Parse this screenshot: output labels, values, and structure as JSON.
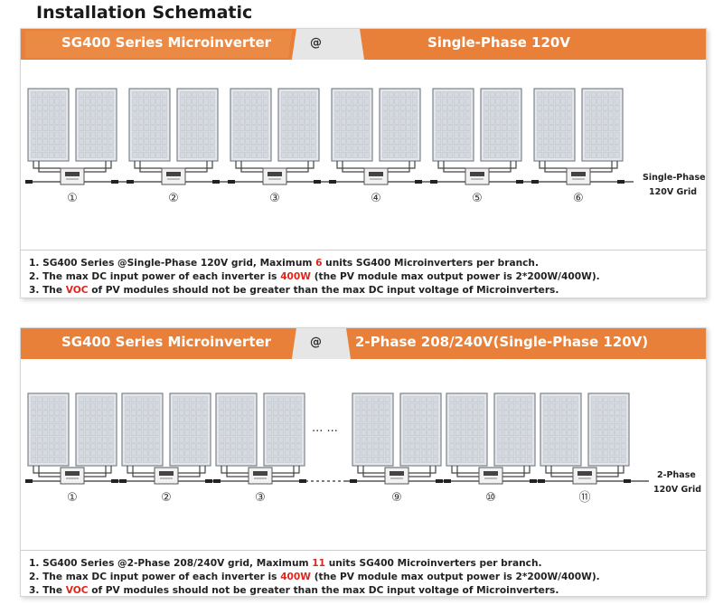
{
  "title": "Installation Schematic",
  "colors": {
    "banner": "#e9803a",
    "banner_dark": "#d96a22",
    "red": "#e0241b",
    "panel_blue": "#dfe3e8"
  },
  "section1": {
    "banner_left": "SG400 Series Microinverter",
    "banner_at": "@",
    "banner_right": "Single-Phase 120V",
    "units": [
      "①",
      "②",
      "③",
      "④",
      "⑤",
      "⑥"
    ],
    "grid_label_1": "Single-Phase",
    "grid_label_2": "120V Grid",
    "notes": [
      {
        "pre": "1. SG400 Series @Single-Phase 120V grid, Maximum ",
        "red": "6",
        "post": " units SG400 Microinverters  per branch."
      },
      {
        "pre": "2. The max DC input power of each inverter is ",
        "red": "400W",
        "post": " (the PV module max output power is 2*200W/400W)."
      },
      {
        "pre": "3. The ",
        "red": "VOC",
        "post": " of PV modules should not be greater than the max DC input voltage of Microinverters."
      }
    ]
  },
  "section2": {
    "banner_left": "SG400 Series Microinverter",
    "banner_at": "@",
    "banner_right": "2-Phase 208/240V(Single-Phase 120V)",
    "units": [
      "①",
      "②",
      "③",
      "⑨",
      "⑩",
      "⑪"
    ],
    "ellipsis": "··· ···",
    "grid_label_1": "2-Phase",
    "grid_label_2": "120V Grid",
    "notes": [
      {
        "pre": "1. SG400 Series @2-Phase 208/240V grid, Maximum ",
        "red": "11",
        "post": " units SG400 Microinverters per branch."
      },
      {
        "pre": "2. The max DC input power of each inverter is ",
        "red": "400W",
        "post": " (the PV module max output power is 2*200W/400W)."
      },
      {
        "pre": "3. The ",
        "red": "VOC",
        "post": " of PV modules should not be greater than the max DC input voltage of Microinverters."
      }
    ]
  }
}
